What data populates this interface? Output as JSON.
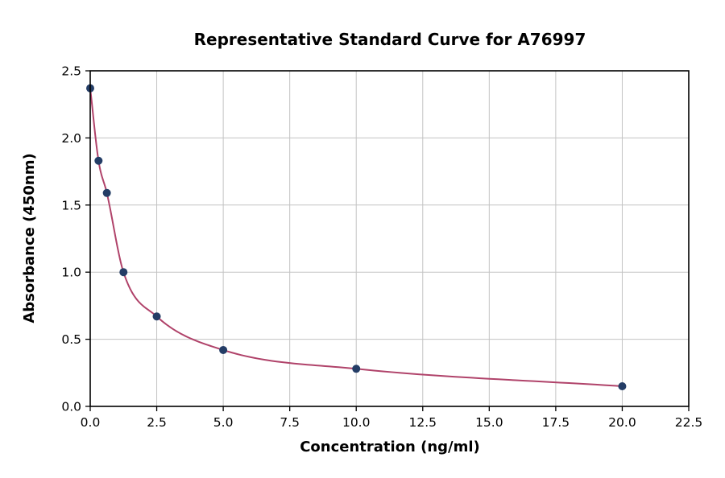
{
  "chart_data": {
    "type": "scatter",
    "title": "Representative Standard Curve for A76997",
    "xlabel": "Concentration (ng/ml)",
    "ylabel": "Absorbance (450nm)",
    "xlim": [
      0,
      22.5
    ],
    "ylim": [
      0,
      2.5
    ],
    "grid": true,
    "legend": "none",
    "xticks": [
      0,
      2.5,
      5,
      7.5,
      10,
      12.5,
      15,
      17.5,
      20,
      22.5
    ],
    "xtick_labels": [
      "0.0",
      "2.5",
      "5.0",
      "7.5",
      "10.0",
      "12.5",
      "15.0",
      "17.5",
      "20.0",
      "22.5"
    ],
    "yticks": [
      0,
      0.5,
      1,
      1.5,
      2,
      2.5
    ],
    "ytick_labels": [
      "0.0",
      "0.5",
      "1.0",
      "1.5",
      "2.0",
      "2.5"
    ],
    "series": [
      {
        "name": "standard-points",
        "type": "scatter",
        "color": "#243d66",
        "x": [
          0,
          0.3125,
          0.625,
          1.25,
          2.5,
          5,
          10,
          20
        ],
        "y": [
          2.37,
          1.83,
          1.59,
          1.0,
          0.67,
          0.42,
          0.28,
          0.15
        ]
      },
      {
        "name": "4pl-fit-curve",
        "type": "line",
        "color": "#b0436a"
      }
    ],
    "colors": {
      "grid": "#c3c3c3",
      "spine": "#000000",
      "background": "#ffffff"
    }
  }
}
